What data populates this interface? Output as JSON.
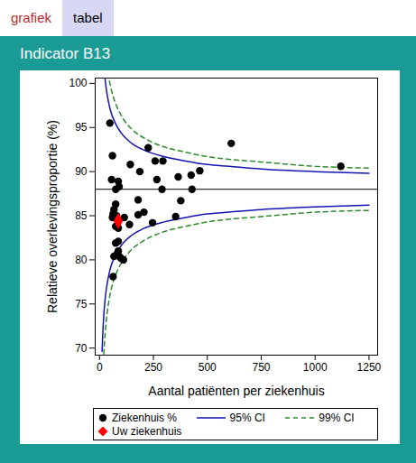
{
  "tabs": [
    "grafiek",
    "tabel"
  ],
  "chart_data": {
    "type": "scatter",
    "title": "Indicator B13",
    "x_label": "Aantal patiënten per ziekenhuis",
    "y_label": "Relatieve overlevingsproportie (%)",
    "xlim": [
      -20,
      1290
    ],
    "ylim": [
      69.2,
      100.6
    ],
    "xticks": [
      0,
      250,
      500,
      750,
      1000,
      1250
    ],
    "yticks": [
      70,
      75,
      80,
      85,
      90,
      95,
      100
    ],
    "grid": false,
    "legend": "bottom",
    "reference_line": 88,
    "series": [
      {
        "name": "Ziekenhuis %",
        "type": "scatter",
        "marker": "circle",
        "color": "#000000",
        "x": [
          48,
          60,
          56,
          75,
          87,
          91,
          143,
          187,
          226,
          266,
          258,
          294,
          290,
          365,
          425,
          465,
          429,
          611,
          1119,
          179,
          75,
          67,
          63,
          60,
          79,
          115,
          139,
          179,
          206,
          246,
          353,
          377,
          75,
          87,
          75,
          87,
          67,
          87,
          83,
          99,
          111,
          63,
          91
        ],
        "values": [
          95.5,
          91.8,
          89.1,
          88.0,
          88.9,
          88.3,
          90.8,
          90.0,
          92.7,
          89.1,
          91.2,
          91.2,
          88.0,
          89.4,
          89.6,
          90.1,
          88.0,
          93.2,
          90.6,
          86.8,
          86.3,
          85.7,
          85.2,
          84.8,
          85.0,
          84.8,
          84.0,
          85.1,
          85.4,
          84.2,
          84.9,
          86.7,
          83.8,
          83.6,
          81.9,
          82.1,
          80.4,
          81.0,
          80.7,
          80.2,
          80.0,
          78.1,
          80.4
        ]
      },
      {
        "name": "95% CI",
        "type": "line",
        "line_style": "solid",
        "color": "#1414b4",
        "x": [
          12,
          15,
          20,
          28,
          40,
          50,
          75,
          100,
          150,
          200,
          300,
          400,
          500,
          600,
          750,
          1000,
          1250
        ],
        "upper": [
          106.4,
          104.4,
          102.2,
          100.0,
          98.1,
          97.0,
          95.4,
          94.4,
          93.2,
          92.5,
          91.7,
          91.2,
          90.8,
          90.6,
          90.3,
          90.0,
          89.8
        ],
        "lower": [
          69.6,
          71.6,
          73.8,
          76.0,
          77.9,
          79.0,
          80.6,
          81.6,
          82.8,
          83.5,
          84.3,
          84.8,
          85.2,
          85.4,
          85.7,
          86.0,
          86.2
        ]
      },
      {
        "name": "99% CI",
        "type": "line",
        "line_style": "dashed",
        "color": "#2e8b2e",
        "x": [
          12,
          15,
          20,
          28,
          40,
          50,
          75,
          100,
          150,
          200,
          300,
          400,
          500,
          600,
          750,
          1000,
          1250
        ],
        "upper": [
          112.2,
          109.6,
          106.7,
          103.8,
          101.2,
          99.8,
          97.7,
          96.4,
          94.8,
          93.9,
          92.8,
          92.2,
          91.7,
          91.4,
          91.1,
          90.6,
          90.4
        ],
        "lower": [
          63.8,
          66.4,
          69.3,
          72.2,
          74.8,
          76.2,
          78.3,
          79.6,
          81.2,
          82.1,
          83.2,
          83.8,
          84.3,
          84.6,
          84.9,
          85.4,
          85.6
        ]
      },
      {
        "name": "Uw ziekenhuis",
        "type": "scatter",
        "marker": "diamond",
        "color": "#ff0000",
        "x": [
          87
        ],
        "values": [
          84.4
        ]
      }
    ]
  }
}
